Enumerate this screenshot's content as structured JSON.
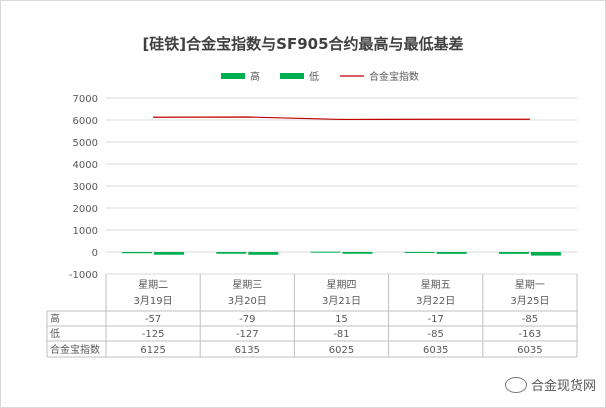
{
  "chart_data": {
    "type": "bar",
    "title": "[硅铁]合金宝指数与SF905合约最高与最低基差",
    "ylim": [
      -1000,
      7000
    ],
    "yticks": [
      -1000,
      0,
      1000,
      2000,
      3000,
      4000,
      5000,
      6000,
      7000
    ],
    "grid": true,
    "legend_position": "top",
    "categories": [
      "星期二",
      "星期三",
      "星期四",
      "星期五",
      "星期一"
    ],
    "dates": [
      "3月19日",
      "3月20日",
      "3月21日",
      "3月22日",
      "3月25日"
    ],
    "series": [
      {
        "name": "高",
        "kind": "bar",
        "color": "#00b050",
        "values": [
          -57,
          -79,
          15,
          -17,
          -85
        ]
      },
      {
        "name": "低",
        "kind": "bar",
        "color": "#00b050",
        "values": [
          -125,
          -127,
          -81,
          -85,
          -163
        ]
      },
      {
        "name": "合金宝指数",
        "kind": "line",
        "color": "#c00000",
        "values": [
          6125,
          6135,
          6025,
          6035,
          6035
        ]
      }
    ],
    "table_values": {
      "高": [
        "-57",
        "-79",
        "15",
        "-17",
        "-85"
      ],
      "低": [
        "-125",
        "-127",
        "-81",
        "-85",
        "-163"
      ],
      "合金宝指数": [
        "6125",
        "6135",
        "6025",
        "6035",
        "6035"
      ]
    }
  },
  "watermark": "合金现货网"
}
